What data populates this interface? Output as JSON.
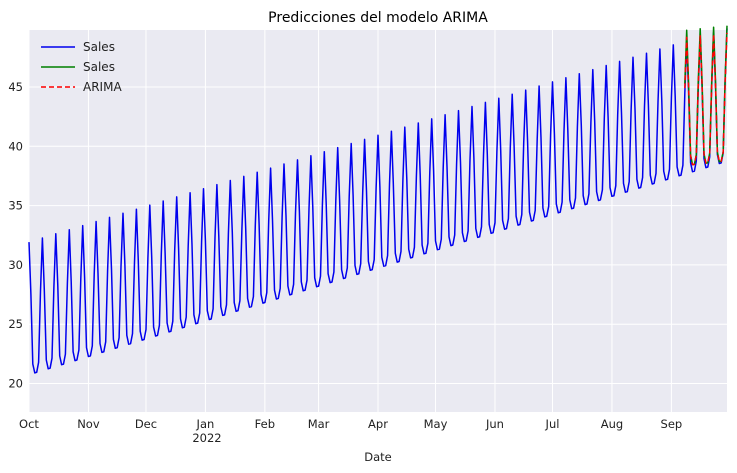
{
  "chart_data": {
    "type": "line",
    "title": "Predicciones del modelo ARIMA",
    "xlabel": "Date",
    "ylabel": "",
    "ylim": [
      17.6,
      49.8
    ],
    "grid": true,
    "legend_position": "top-left",
    "x_range": [
      "2021-10-01",
      "2022-09-30"
    ],
    "x_tick_labels": [
      "Oct",
      "Nov",
      "Dec",
      "Jan",
      "Feb",
      "Mar",
      "Apr",
      "May",
      "Jun",
      "Jul",
      "Aug",
      "Sep"
    ],
    "x_tick_dates": [
      "2021-10-01",
      "2021-11-01",
      "2021-12-01",
      "2022-01-01",
      "2022-02-01",
      "2022-03-01",
      "2022-04-01",
      "2022-05-01",
      "2022-06-01",
      "2022-07-01",
      "2022-08-01",
      "2022-09-01"
    ],
    "x_year_label": "2022",
    "y_ticks": [
      20,
      25,
      30,
      35,
      40,
      45
    ],
    "series": [
      {
        "name": "Sales",
        "color": "#0000ee",
        "style": "solid",
        "x_start": "2021-10-01",
        "x_end": "2022-09-30",
        "pattern": "weekly",
        "trend_start": 24.5,
        "trend_end": 42.5,
        "weekly_amplitude": 5.5
      },
      {
        "name": "Sales",
        "color": "#008000",
        "style": "solid",
        "x_start": "2022-09-08",
        "x_end": "2022-09-30",
        "pattern": "weekly",
        "trend_start": 42.2,
        "trend_end": 42.6,
        "weekly_amplitude": 5.6
      },
      {
        "name": "ARIMA",
        "color": "#ff0000",
        "style": "dashed",
        "x_start": "2022-09-08",
        "x_end": "2022-09-30",
        "pattern": "weekly",
        "trend_start": 42.0,
        "trend_end": 42.4,
        "weekly_amplitude": 5.3
      }
    ]
  }
}
